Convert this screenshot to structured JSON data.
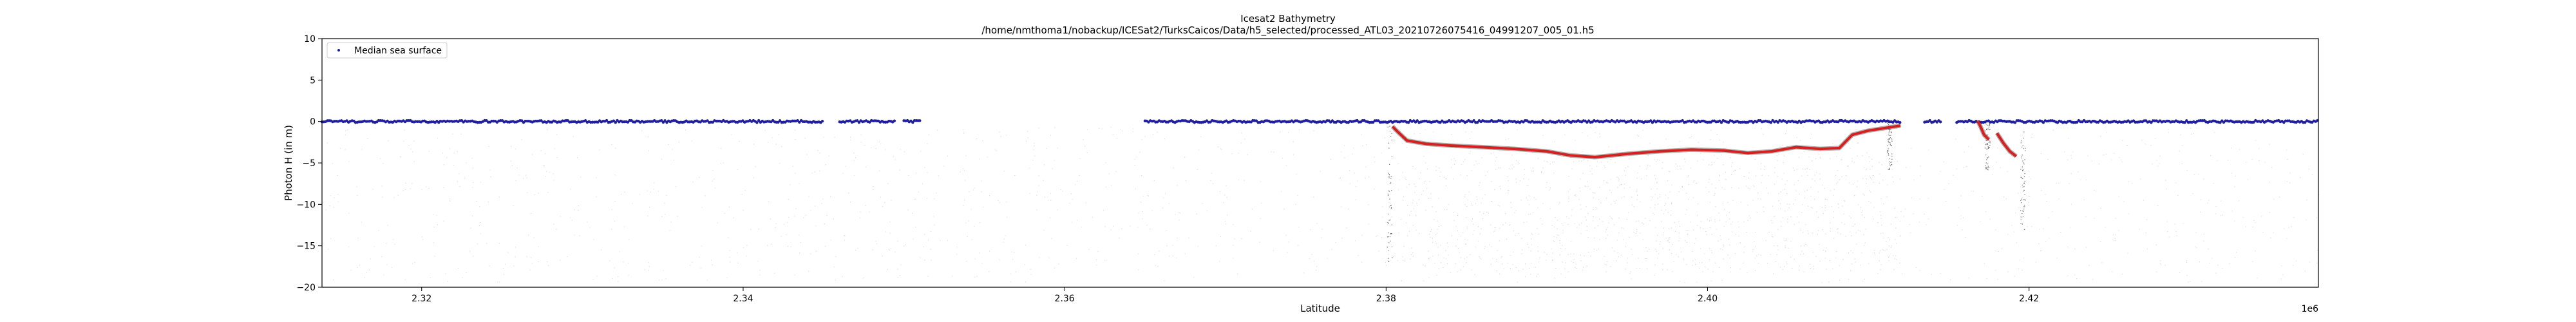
{
  "chart_data": {
    "type": "scatter",
    "title": "Icesat2 Bathymetry",
    "subtitle": "/home/nmthoma1/nobackup/ICESat2/TurksCaicos/Data/h5_selected/processed_ATL03_20210726075416_04991207_005_01.h5",
    "xlabel": "Latitude",
    "ylabel": "Photon H (in m)",
    "x_offset_label": "1e6",
    "xlim": [
      2313800,
      2438000
    ],
    "ylim": [
      -20,
      10
    ],
    "x_ticks": [
      2320000,
      2340000,
      2360000,
      2380000,
      2400000,
      2420000
    ],
    "x_tick_labels": [
      "2.32",
      "2.34",
      "2.36",
      "2.38",
      "2.40",
      "2.42"
    ],
    "y_ticks": [
      10,
      5,
      0,
      -5,
      -10,
      -15,
      -20
    ],
    "y_tick_labels": [
      "10",
      "5",
      "0",
      "−5",
      "−10",
      "−15",
      "−20"
    ],
    "legend": {
      "position": "top-left",
      "entries": [
        "Median sea surface"
      ]
    },
    "grid": false,
    "colors": {
      "sea_surface": "#1f1fa0",
      "bathymetry": "#d62020",
      "raw_photons": "#9a9a9a",
      "dark_photons": "#222222"
    },
    "series": [
      {
        "name": "Median sea surface",
        "style": "scatter",
        "y_value": 0,
        "x_segments": [
          [
            2313800,
            2345000
          ],
          [
            2346000,
            2349500
          ],
          [
            2350000,
            2351000
          ],
          [
            2365000,
            2412000
          ],
          [
            2413500,
            2414500
          ],
          [
            2415500,
            2438000
          ]
        ]
      },
      {
        "style": "line",
        "x": [
          2380400,
          2380700,
          2381300,
          2382500,
          2384000,
          2386000,
          2388000,
          2390000,
          2391500,
          2393000,
          2395000,
          2397000,
          2399000,
          2401000,
          2402500,
          2404000,
          2405500,
          2407000,
          2408200,
          2409000,
          2410000,
          2411000,
          2412000
        ],
        "y": [
          -0.6,
          -1.2,
          -2.3,
          -2.7,
          -2.9,
          -3.1,
          -3.3,
          -3.6,
          -4.1,
          -4.3,
          -3.9,
          -3.6,
          -3.4,
          -3.5,
          -3.8,
          -3.6,
          -3.1,
          -3.3,
          -3.2,
          -1.6,
          -1.1,
          -0.8,
          -0.5
        ]
      },
      {
        "style": "line",
        "x": [
          2416800,
          2417000,
          2417200,
          2417500
        ],
        "y": [
          0.1,
          -0.7,
          -1.6,
          -2.2
        ]
      },
      {
        "style": "line",
        "x": [
          2418000,
          2418400,
          2418800,
          2419200
        ],
        "y": [
          -1.4,
          -2.6,
          -3.6,
          -4.2
        ]
      }
    ]
  }
}
